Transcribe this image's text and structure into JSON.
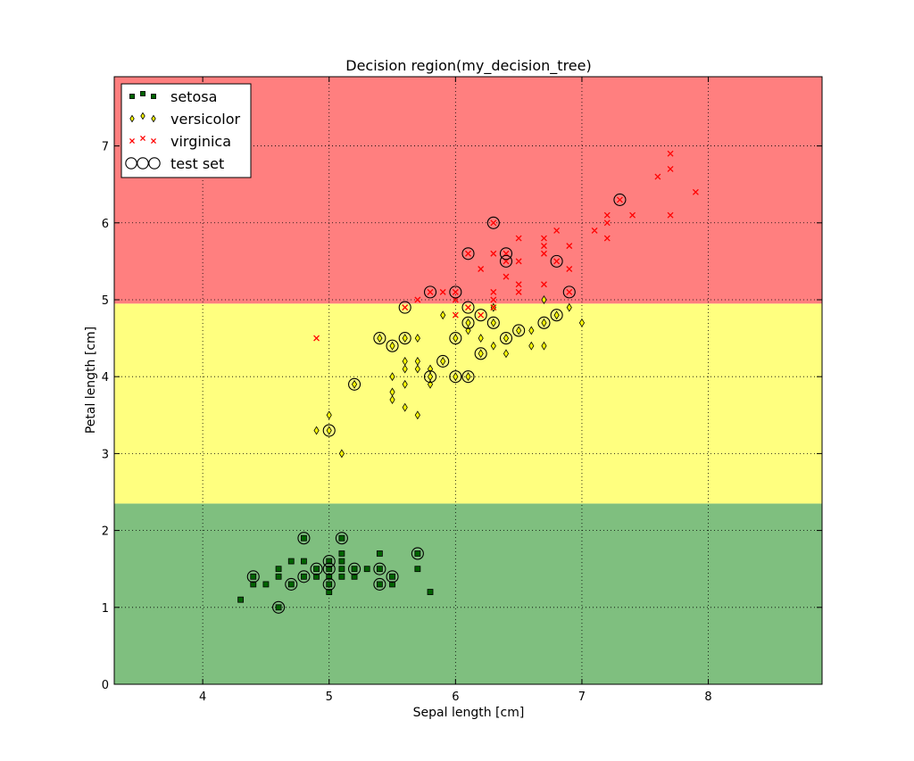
{
  "chart_data": {
    "type": "scatter",
    "title": "Decision region(my_decision_tree)",
    "xlabel": "Sepal length [cm]",
    "ylabel": "Petal length [cm]",
    "xlim": [
      3.3,
      8.9
    ],
    "ylim": [
      0,
      7.9
    ],
    "xticks": [
      4,
      5,
      6,
      7,
      8
    ],
    "yticks": [
      0,
      1,
      2,
      3,
      4,
      5,
      6,
      7
    ],
    "grid": true,
    "legend_position": "top-left",
    "regions": [
      {
        "class": "setosa",
        "y_from": 0,
        "y_to": 2.35,
        "color": "#7fbf7f"
      },
      {
        "class": "versicolor",
        "y_from": 2.35,
        "y_to": 4.95,
        "color": "#ffff7f"
      },
      {
        "class": "virginica",
        "y_from": 4.95,
        "y_to": 7.9,
        "color": "#ff7f7f"
      }
    ],
    "series": [
      {
        "name": "setosa",
        "marker": "square",
        "color": "#006400",
        "points": [
          [
            4.3,
            1.1
          ],
          [
            4.4,
            1.3
          ],
          [
            4.4,
            1.4
          ],
          [
            4.5,
            1.3
          ],
          [
            4.6,
            1.0
          ],
          [
            4.6,
            1.4
          ],
          [
            4.6,
            1.5
          ],
          [
            4.7,
            1.3
          ],
          [
            4.7,
            1.6
          ],
          [
            4.8,
            1.4
          ],
          [
            4.8,
            1.6
          ],
          [
            4.8,
            1.9
          ],
          [
            4.9,
            1.4
          ],
          [
            4.9,
            1.5
          ],
          [
            5.0,
            1.2
          ],
          [
            5.0,
            1.3
          ],
          [
            5.0,
            1.4
          ],
          [
            5.0,
            1.5
          ],
          [
            5.0,
            1.6
          ],
          [
            5.1,
            1.4
          ],
          [
            5.1,
            1.5
          ],
          [
            5.1,
            1.6
          ],
          [
            5.1,
            1.7
          ],
          [
            5.1,
            1.9
          ],
          [
            5.2,
            1.4
          ],
          [
            5.2,
            1.5
          ],
          [
            5.3,
            1.5
          ],
          [
            5.4,
            1.3
          ],
          [
            5.4,
            1.5
          ],
          [
            5.4,
            1.7
          ],
          [
            5.5,
            1.3
          ],
          [
            5.5,
            1.4
          ],
          [
            5.7,
            1.5
          ],
          [
            5.7,
            1.7
          ],
          [
            5.8,
            1.2
          ]
        ]
      },
      {
        "name": "versicolor",
        "marker": "diamond",
        "color": "#ffff00",
        "points": [
          [
            4.9,
            3.3
          ],
          [
            5.0,
            3.3
          ],
          [
            5.0,
            3.5
          ],
          [
            5.1,
            3.0
          ],
          [
            5.2,
            3.9
          ],
          [
            5.4,
            4.5
          ],
          [
            5.5,
            3.7
          ],
          [
            5.5,
            3.8
          ],
          [
            5.5,
            4.0
          ],
          [
            5.5,
            4.4
          ],
          [
            5.6,
            3.6
          ],
          [
            5.6,
            3.9
          ],
          [
            5.6,
            4.1
          ],
          [
            5.6,
            4.2
          ],
          [
            5.6,
            4.5
          ],
          [
            5.7,
            3.5
          ],
          [
            5.7,
            4.1
          ],
          [
            5.7,
            4.2
          ],
          [
            5.7,
            4.5
          ],
          [
            5.8,
            3.9
          ],
          [
            5.8,
            4.0
          ],
          [
            5.8,
            4.1
          ],
          [
            5.9,
            4.2
          ],
          [
            5.9,
            4.8
          ],
          [
            6.0,
            4.0
          ],
          [
            6.0,
            4.5
          ],
          [
            6.1,
            4.0
          ],
          [
            6.1,
            4.6
          ],
          [
            6.1,
            4.7
          ],
          [
            6.2,
            4.3
          ],
          [
            6.2,
            4.5
          ],
          [
            6.3,
            4.4
          ],
          [
            6.3,
            4.7
          ],
          [
            6.3,
            4.9
          ],
          [
            6.4,
            4.3
          ],
          [
            6.4,
            4.5
          ],
          [
            6.5,
            4.6
          ],
          [
            6.6,
            4.4
          ],
          [
            6.6,
            4.6
          ],
          [
            6.7,
            4.4
          ],
          [
            6.7,
            4.7
          ],
          [
            6.7,
            5.0
          ],
          [
            6.8,
            4.8
          ],
          [
            6.9,
            4.9
          ],
          [
            7.0,
            4.7
          ]
        ]
      },
      {
        "name": "virginica",
        "marker": "x",
        "color": "#ff0000",
        "points": [
          [
            4.9,
            4.5
          ],
          [
            5.6,
            4.9
          ],
          [
            5.7,
            5.0
          ],
          [
            5.8,
            5.1
          ],
          [
            5.9,
            5.1
          ],
          [
            6.0,
            4.8
          ],
          [
            6.0,
            5.0
          ],
          [
            6.0,
            5.1
          ],
          [
            6.1,
            4.9
          ],
          [
            6.1,
            5.6
          ],
          [
            6.2,
            4.8
          ],
          [
            6.2,
            5.4
          ],
          [
            6.3,
            4.9
          ],
          [
            6.3,
            5.0
          ],
          [
            6.3,
            5.1
          ],
          [
            6.3,
            5.6
          ],
          [
            6.3,
            6.0
          ],
          [
            6.4,
            5.3
          ],
          [
            6.4,
            5.5
          ],
          [
            6.4,
            5.6
          ],
          [
            6.5,
            5.1
          ],
          [
            6.5,
            5.2
          ],
          [
            6.5,
            5.5
          ],
          [
            6.5,
            5.8
          ],
          [
            6.7,
            5.2
          ],
          [
            6.7,
            5.6
          ],
          [
            6.7,
            5.7
          ],
          [
            6.7,
            5.8
          ],
          [
            6.8,
            5.5
          ],
          [
            6.8,
            5.9
          ],
          [
            6.9,
            5.1
          ],
          [
            6.9,
            5.4
          ],
          [
            6.9,
            5.7
          ],
          [
            7.1,
            5.9
          ],
          [
            7.2,
            5.8
          ],
          [
            7.2,
            6.0
          ],
          [
            7.2,
            6.1
          ],
          [
            7.3,
            6.3
          ],
          [
            7.4,
            6.1
          ],
          [
            7.6,
            6.6
          ],
          [
            7.7,
            6.1
          ],
          [
            7.7,
            6.7
          ],
          [
            7.7,
            6.9
          ],
          [
            7.9,
            6.4
          ]
        ]
      },
      {
        "name": "test set",
        "marker": "circle",
        "color": "none",
        "points": [
          [
            4.4,
            1.4
          ],
          [
            4.6,
            1.0
          ],
          [
            4.7,
            1.3
          ],
          [
            4.8,
            1.4
          ],
          [
            4.8,
            1.9
          ],
          [
            4.9,
            1.5
          ],
          [
            5.0,
            1.3
          ],
          [
            5.0,
            1.5
          ],
          [
            5.0,
            1.6
          ],
          [
            5.1,
            1.9
          ],
          [
            5.2,
            1.5
          ],
          [
            5.4,
            1.3
          ],
          [
            5.4,
            1.5
          ],
          [
            5.5,
            1.4
          ],
          [
            5.7,
            1.7
          ],
          [
            5.0,
            3.3
          ],
          [
            5.2,
            3.9
          ],
          [
            5.4,
            4.5
          ],
          [
            5.5,
            4.4
          ],
          [
            5.6,
            4.5
          ],
          [
            5.8,
            4.0
          ],
          [
            5.9,
            4.2
          ],
          [
            6.0,
            4.0
          ],
          [
            6.0,
            4.5
          ],
          [
            6.1,
            4.0
          ],
          [
            6.1,
            4.7
          ],
          [
            6.2,
            4.3
          ],
          [
            6.3,
            4.7
          ],
          [
            6.4,
            4.5
          ],
          [
            6.5,
            4.6
          ],
          [
            6.7,
            4.7
          ],
          [
            6.8,
            4.8
          ],
          [
            5.6,
            4.9
          ],
          [
            5.8,
            5.1
          ],
          [
            6.0,
            5.1
          ],
          [
            6.1,
            4.9
          ],
          [
            6.1,
            5.6
          ],
          [
            6.2,
            4.8
          ],
          [
            6.3,
            6.0
          ],
          [
            6.4,
            5.5
          ],
          [
            6.4,
            5.6
          ],
          [
            6.8,
            5.5
          ],
          [
            6.9,
            5.1
          ],
          [
            7.3,
            6.3
          ]
        ]
      }
    ],
    "legend": [
      {
        "label": "setosa",
        "marker": "square"
      },
      {
        "label": "versicolor",
        "marker": "diamond"
      },
      {
        "label": "virginica",
        "marker": "x"
      },
      {
        "label": "test set",
        "marker": "circle"
      }
    ]
  }
}
